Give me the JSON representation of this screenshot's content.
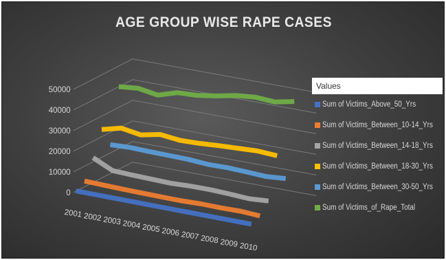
{
  "chart_data": {
    "type": "line",
    "title": "AGE GROUP WISE RAPE CASES",
    "legend_title": "Values",
    "legend_position": "right",
    "grid": true,
    "ylim": [
      0,
      50000
    ],
    "y_ticks": [
      "0",
      "10000",
      "20000",
      "30000",
      "40000",
      "50000"
    ],
    "categories": [
      "2001",
      "2002",
      "2003",
      "2004",
      "2005",
      "2006",
      "2007",
      "2008",
      "2009",
      "2010"
    ],
    "series": [
      {
        "name": "Sum of Victims_Above_50_Yrs",
        "color": "#4472c4",
        "values": [
          150,
          160,
          170,
          175,
          180,
          185,
          200,
          210,
          215,
          230
        ]
      },
      {
        "name": "Sum of Victims_Between_10-14_Yrs",
        "color": "#ed7d31",
        "values": [
          2800,
          2600,
          2400,
          2300,
          2200,
          2200,
          2500,
          2400,
          2600,
          2100
        ]
      },
      {
        "name": "Sum of Victims_Between_14-18_Yrs",
        "color": "#a5a5a5",
        "values": [
          12000,
          7500,
          7200,
          7000,
          6800,
          7200,
          7300,
          7000,
          6500,
          7200
        ]
      },
      {
        "name": "Sum of Victims_Between_18-30_Yrs",
        "color": "#ffc000",
        "values": [
          23500,
          26000,
          24500,
          26500,
          25500,
          25800,
          26500,
          27000,
          27500,
          27000
        ]
      },
      {
        "name": "Sum of Victims_Between_30-50_Yrs",
        "color": "#5b9bd5",
        "values": [
          14000,
          14500,
          14300,
          14200,
          14100,
          13500,
          13700,
          13400,
          13000,
          13800
        ]
      },
      {
        "name": "Sum of Victims_of_Rape_Total",
        "color": "#70ad47",
        "values": [
          40000,
          41000,
          39500,
          42500,
          43000,
          44500,
          46500,
          47500,
          47000,
          49000
        ]
      }
    ]
  }
}
